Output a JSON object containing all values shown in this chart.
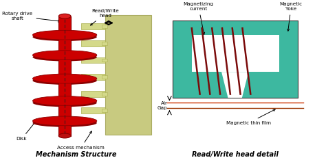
{
  "bg_color": "#ffffff",
  "disk_color": "#cc0000",
  "disk_shadow": "#8b0000",
  "arm_color": "#d4d98a",
  "arm_dark": "#aab050",
  "platter_color": "#c8ca80",
  "teal_color": "#3db8a0",
  "coil_color": "#7a0a0a",
  "title1": "Mechanism Structure",
  "title2": "Read/Write head detail",
  "label_disk": "Disk",
  "label_shaft": "Rotary drive\nshaft",
  "label_head": "Read/Write\nhead",
  "label_access": "Access mechanism",
  "label_mag_cur": "Magnetizing\ncurrent",
  "label_yoke": "Magnetic\nYoke",
  "label_air_gap": "Air\nGap",
  "label_thin_film": "Magnetic thin film"
}
